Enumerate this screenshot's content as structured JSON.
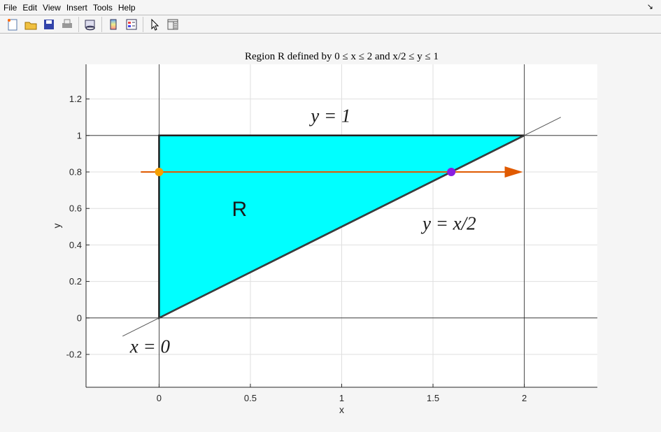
{
  "menu": [
    "File",
    "Edit",
    "View",
    "Insert",
    "Tools",
    "Help"
  ],
  "toolbar": [
    {
      "icon": "new-figure-icon"
    },
    {
      "icon": "open-file-icon"
    },
    {
      "icon": "save-icon"
    },
    {
      "icon": "print-icon"
    },
    {
      "icon": "link-plot-icon"
    },
    {
      "icon": "colorbar-icon"
    },
    {
      "icon": "legend-icon"
    },
    {
      "icon": "pointer-icon"
    },
    {
      "icon": "property-inspector-icon"
    }
  ],
  "chart_data": {
    "type": "area",
    "title": "Region R defined by 0 ≤ x ≤ 2 and x/2 ≤ y ≤ 1",
    "xlabel": "x",
    "ylabel": "y",
    "xlim": [
      -0.4,
      2.4
    ],
    "ylim": [
      -0.38,
      1.39
    ],
    "xticks": [
      0,
      0.5,
      1,
      1.5,
      2
    ],
    "xtick_labels": [
      "0",
      "0.5",
      "1",
      "1.5",
      "2"
    ],
    "yticks": [
      -0.2,
      0,
      0.2,
      0.4,
      0.6,
      0.8,
      1,
      1.2
    ],
    "ytick_labels": [
      "-0.2",
      "0",
      "0.2",
      "0.4",
      "0.6",
      "0.8",
      "1",
      "1.2"
    ],
    "grid": true,
    "region": {
      "label": "R",
      "vertices": [
        [
          0,
          0
        ],
        [
          0,
          1
        ],
        [
          2,
          1
        ]
      ],
      "color": "#00ffff"
    },
    "lines": {
      "diagonal": {
        "x": [
          -0.2,
          2.2
        ],
        "y": [
          -0.1,
          1.1
        ]
      },
      "xline": [
        0,
        2
      ],
      "yline": [
        0,
        1
      ]
    },
    "arrow": {
      "x": [
        -0.1,
        2.0
      ],
      "y": 0.8,
      "color": "#e05a00"
    },
    "points": [
      {
        "x": 0,
        "y": 0.8,
        "color": "#f5a000"
      },
      {
        "x": 1.6,
        "y": 0.8,
        "color": "#8a1ee0"
      }
    ],
    "annotations": [
      {
        "text": "y = 1",
        "x": 0.94,
        "y": 1.1
      },
      {
        "text": "y = x/2",
        "x": 1.45,
        "y": 0.55
      },
      {
        "text": "x = 0",
        "x": -0.05,
        "y": -0.16
      },
      {
        "text": "R",
        "x": 0.44,
        "y": 0.6
      }
    ]
  }
}
